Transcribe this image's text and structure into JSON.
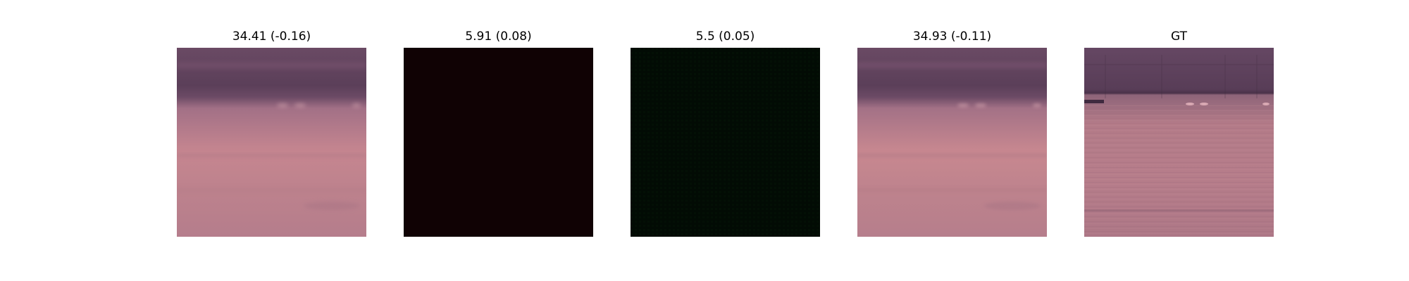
{
  "figure": {
    "panels": [
      {
        "title": "34.41 (-0.16)",
        "image": "blurred-reconstruction-water-scene"
      },
      {
        "title": "5.91 (0.08)",
        "image": "dark-red-failed-reconstruction"
      },
      {
        "title": "5.5 (0.05)",
        "image": "dark-green-failed-reconstruction"
      },
      {
        "title": "34.93 (-0.11)",
        "image": "blurred-reconstruction-water-scene"
      },
      {
        "title": "GT",
        "image": "ground-truth-water-scene"
      }
    ]
  },
  "colors": {
    "background": "#ffffff",
    "shore_dark": "#5a3f58",
    "water_mid": "#b77c88",
    "water_light": "#c98a8e",
    "dark_red": "#100204",
    "dark_green": "#020b04"
  }
}
